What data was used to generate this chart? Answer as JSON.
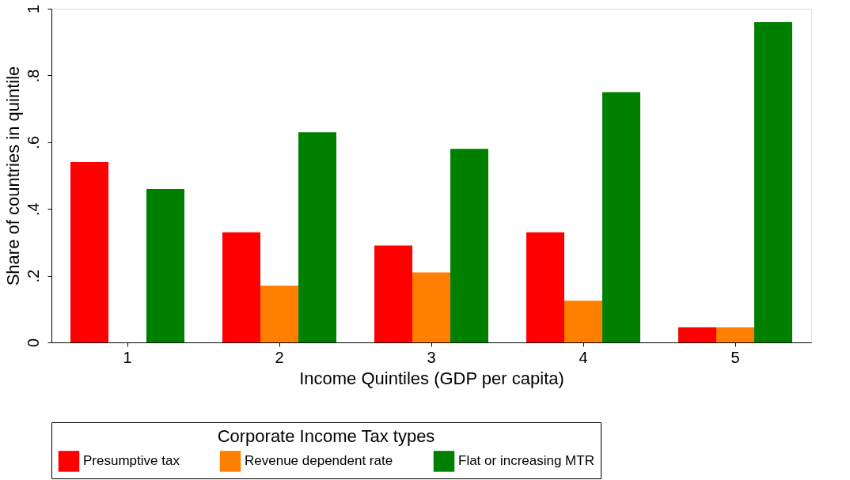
{
  "chart_data": {
    "type": "bar",
    "xlabel": "Income Quintiles (GDP per capita)",
    "ylabel": "Share of countries in quintile",
    "legend_title": "Corporate Income Tax types",
    "categories": [
      "1",
      "2",
      "3",
      "4",
      "5"
    ],
    "series": [
      {
        "name": "Presumptive tax",
        "color": "#ff0000",
        "values": [
          0.54,
          0.33,
          0.29,
          0.33,
          0.045
        ]
      },
      {
        "name": "Revenue dependent rate",
        "color": "#ff7f00",
        "values": [
          0,
          0.17,
          0.21,
          0.125,
          0.045
        ]
      },
      {
        "name": "Flat or increasing MTR",
        "color": "#008000",
        "values": [
          0.46,
          0.63,
          0.58,
          0.75,
          0.96
        ]
      }
    ],
    "ylim": [
      0,
      1
    ],
    "yticks": [
      0,
      {
        "value": 0.2,
        "label": ".2"
      },
      {
        "value": 0.4,
        "label": ".4"
      },
      {
        "value": 0.6,
        "label": ".6"
      },
      {
        "value": 0.8,
        "label": ".8"
      },
      1
    ],
    "grid": false,
    "legend": "bottom"
  }
}
